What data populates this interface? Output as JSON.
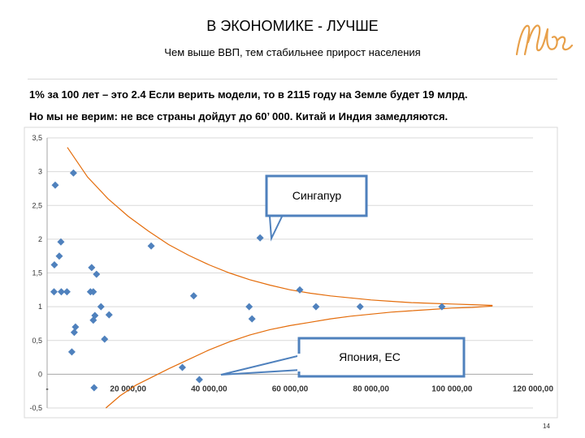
{
  "header": {
    "title": "В ЭКОНОМИКЕ - ЛУЧШЕ",
    "subtitle": "Чем выше ВВП, тем стабильнее прирост населения"
  },
  "text": {
    "line1": "1% за 100 лет – это 2.4 Если верить модели, то в 2115 году на Земле будет 19 млрд.",
    "line2": "Но мы не верим: не все страны дойдут до 60’ 000. Китай и Индия замедляются."
  },
  "callouts": {
    "singapore": "Сингапур",
    "japan_eu": "Япония, ЕС"
  },
  "footer": {
    "page_number": "14"
  },
  "colors": {
    "points": "#4f81bd",
    "envelope": "#e46c0a",
    "gridline": "#d9d9d9",
    "callout_border": "#4f81bd",
    "logo": "#e8a04a"
  },
  "chart_data": {
    "type": "scatter",
    "xlim": [
      0,
      120000
    ],
    "ylim": [
      -0.5,
      3.5
    ],
    "grid": "horizontal",
    "y_ticks": [
      "-0,5",
      "0",
      "0,5",
      "1",
      "1,5",
      "2",
      "2,5",
      "3",
      "3,5"
    ],
    "y_tick_values": [
      -0.5,
      0,
      0.5,
      1,
      1.5,
      2,
      2.5,
      3,
      3.5
    ],
    "x_ticks": [
      "-",
      "20 000,00",
      "40 000,00",
      "60 000,00",
      "80 000,00",
      "100 000,00",
      "120 000,00"
    ],
    "x_tick_values": [
      0,
      20000,
      40000,
      60000,
      80000,
      100000,
      120000
    ],
    "points": [
      {
        "x": 2000,
        "y": 2.8
      },
      {
        "x": 6500,
        "y": 2.98
      },
      {
        "x": 3400,
        "y": 1.96
      },
      {
        "x": 3000,
        "y": 1.75
      },
      {
        "x": 1800,
        "y": 1.62
      },
      {
        "x": 1700,
        "y": 1.22
      },
      {
        "x": 3500,
        "y": 1.22
      },
      {
        "x": 4900,
        "y": 1.22
      },
      {
        "x": 7000,
        "y": 0.7
      },
      {
        "x": 6700,
        "y": 0.62
      },
      {
        "x": 6100,
        "y": 0.33
      },
      {
        "x": 11000,
        "y": 1.58
      },
      {
        "x": 10700,
        "y": 1.22
      },
      {
        "x": 11400,
        "y": 1.22
      },
      {
        "x": 12200,
        "y": 1.48
      },
      {
        "x": 11800,
        "y": 0.87
      },
      {
        "x": 11400,
        "y": 0.8
      },
      {
        "x": 13300,
        "y": 1.0
      },
      {
        "x": 15300,
        "y": 0.88
      },
      {
        "x": 14200,
        "y": 0.52
      },
      {
        "x": 11600,
        "y": -0.2
      },
      {
        "x": 25700,
        "y": 1.9
      },
      {
        "x": 36200,
        "y": 1.16
      },
      {
        "x": 33400,
        "y": 0.1
      },
      {
        "x": 37600,
        "y": -0.08
      },
      {
        "x": 49900,
        "y": 1.0
      },
      {
        "x": 50600,
        "y": 0.82
      },
      {
        "x": 52600,
        "y": 2.02
      },
      {
        "x": 62400,
        "y": 1.25
      },
      {
        "x": 66400,
        "y": 1.0
      },
      {
        "x": 77300,
        "y": 1.0
      },
      {
        "x": 97500,
        "y": 1.0
      }
    ],
    "upper_envelope": [
      [
        5000,
        3.36
      ],
      [
        10000,
        2.92
      ],
      [
        15000,
        2.6
      ],
      [
        20000,
        2.34
      ],
      [
        25000,
        2.12
      ],
      [
        30000,
        1.92
      ],
      [
        35000,
        1.76
      ],
      [
        40000,
        1.62
      ],
      [
        45000,
        1.5
      ],
      [
        50000,
        1.4
      ],
      [
        55000,
        1.32
      ],
      [
        60000,
        1.25
      ],
      [
        65000,
        1.2
      ],
      [
        70000,
        1.16
      ],
      [
        75000,
        1.13
      ],
      [
        80000,
        1.1
      ],
      [
        85000,
        1.08
      ],
      [
        90000,
        1.06
      ],
      [
        95000,
        1.05
      ],
      [
        100000,
        1.04
      ],
      [
        105000,
        1.03
      ],
      [
        110000,
        1.02
      ]
    ],
    "lower_envelope": [
      [
        14500,
        -0.5
      ],
      [
        18000,
        -0.32
      ],
      [
        22000,
        -0.16
      ],
      [
        26000,
        -0.04
      ],
      [
        30000,
        0.08
      ],
      [
        35000,
        0.22
      ],
      [
        40000,
        0.36
      ],
      [
        45000,
        0.48
      ],
      [
        50000,
        0.58
      ],
      [
        55000,
        0.66
      ],
      [
        60000,
        0.72
      ],
      [
        65000,
        0.77
      ],
      [
        70000,
        0.82
      ],
      [
        75000,
        0.86
      ],
      [
        80000,
        0.89
      ],
      [
        85000,
        0.92
      ],
      [
        90000,
        0.94
      ],
      [
        95000,
        0.96
      ],
      [
        100000,
        0.98
      ],
      [
        105000,
        0.99
      ],
      [
        110000,
        1.01
      ]
    ]
  }
}
